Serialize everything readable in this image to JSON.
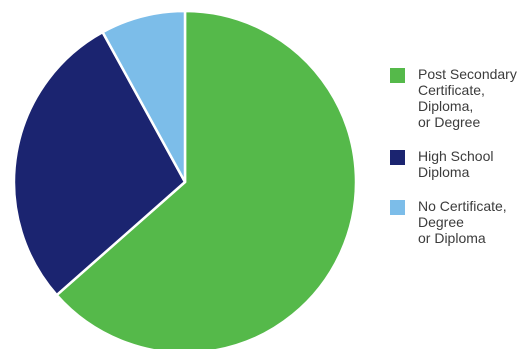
{
  "chart_data": {
    "type": "pie",
    "start": "top",
    "direction": "clockwise",
    "slices": [
      {
        "label": "Post Secondary\nCertificate,\nDiploma,\nor Degree",
        "value": 63.5,
        "color": "#55b94a"
      },
      {
        "label": "High School\nDiploma",
        "value": 28.5,
        "color": "#1b2470"
      },
      {
        "label": "No Certificate,\nDegree\nor Diploma",
        "value": 8.0,
        "color": "#7cbde9"
      }
    ],
    "slice_border_color": "#ffffff",
    "legend_position": "right"
  }
}
